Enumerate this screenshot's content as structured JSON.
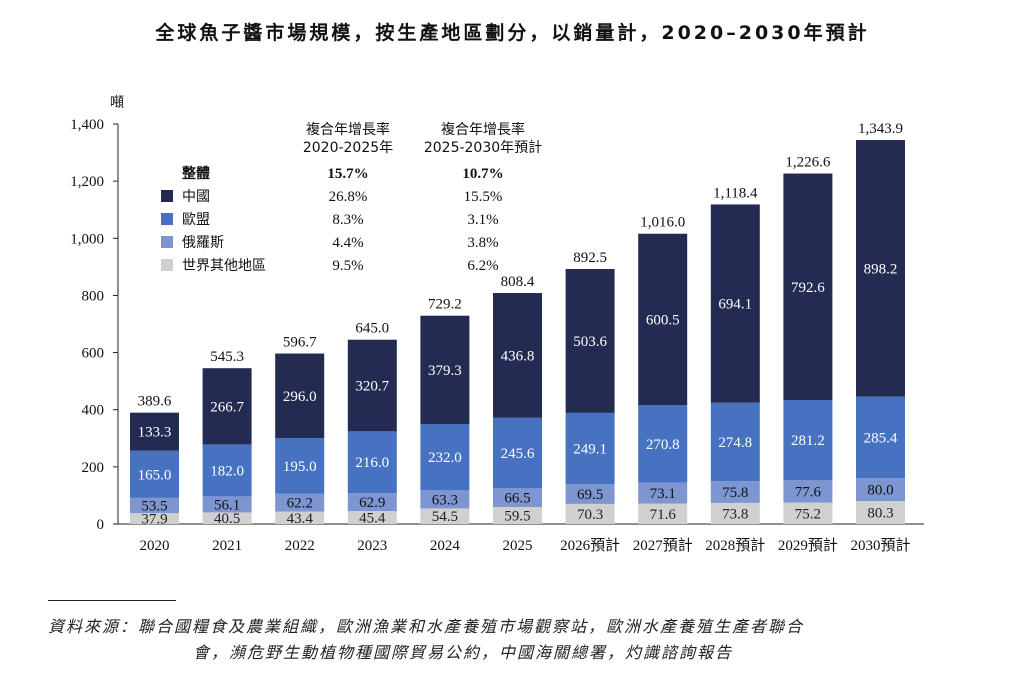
{
  "title": "全球魚子醬市場規模，按生產地區劃分，以銷量計，2020–2030年預計",
  "source_line1": "資料來源：聯合國糧食及農業組織，歐洲漁業和水產養殖市場觀察站，歐洲水產養殖生產者聯合",
  "source_line2": "會，瀕危野生動植物種國際貿易公約，中國海關總署，灼識諮詢報告",
  "chart_data": {
    "type": "bar",
    "stacked": true,
    "unit_label": "噸",
    "categories": [
      "2020",
      "2021",
      "2022",
      "2023",
      "2024",
      "2025",
      "2026預計",
      "2027預計",
      "2028預計",
      "2029預計",
      "2030預計"
    ],
    "ylim": [
      0,
      1400
    ],
    "yticks": [
      "0",
      "200",
      "400",
      "600",
      "800",
      "1,000",
      "1,200",
      "1,400"
    ],
    "series": [
      {
        "name": "世界其他地區",
        "color": "#d0d0d0",
        "text_color": "#222222",
        "values": [
          37.9,
          40.5,
          43.4,
          45.4,
          54.5,
          59.5,
          70.3,
          71.6,
          73.8,
          75.2,
          80.3
        ],
        "labels": [
          "37.9",
          "40.5",
          "43.4",
          "45.4",
          "54.5",
          "59.5",
          "70.3",
          "71.6",
          "73.8",
          "75.2",
          "80.3"
        ]
      },
      {
        "name": "俄羅斯",
        "color": "#7d96d2",
        "text_color": "#111111",
        "values": [
          53.5,
          56.1,
          62.2,
          62.9,
          63.3,
          66.5,
          69.5,
          73.1,
          75.8,
          77.6,
          80.0
        ],
        "labels": [
          "53.5",
          "56.1",
          "62.2",
          "62.9",
          "63.3",
          "66.5",
          "69.5",
          "73.1",
          "75.8",
          "77.6",
          "80.0"
        ]
      },
      {
        "name": "歐盟",
        "color": "#4672c1",
        "text_color": "#ffffff",
        "values": [
          165.0,
          182.0,
          195.0,
          216.0,
          232.0,
          245.6,
          249.1,
          270.8,
          274.8,
          281.2,
          285.4
        ],
        "labels": [
          "165.0",
          "182.0",
          "195.0",
          "216.0",
          "232.0",
          "245.6",
          "249.1",
          "270.8",
          "274.8",
          "281.2",
          "285.4"
        ]
      },
      {
        "name": "中國",
        "color": "#232b52",
        "text_color": "#ffffff",
        "values": [
          133.3,
          266.7,
          296.0,
          320.7,
          379.3,
          436.8,
          503.6,
          600.5,
          694.1,
          792.6,
          898.2
        ],
        "labels": [
          "133.3",
          "266.7",
          "296.0",
          "320.7",
          "379.3",
          "436.8",
          "503.6",
          "600.5",
          "694.1",
          "792.6",
          "898.2"
        ]
      }
    ],
    "totals": [
      389.6,
      545.3,
      596.7,
      645.0,
      729.2,
      808.4,
      892.5,
      1016.0,
      1118.4,
      1226.6,
      1343.9
    ],
    "total_labels": [
      "389.6",
      "545.3",
      "596.7",
      "645.0",
      "729.2",
      "808.4",
      "892.5",
      "1,016.0",
      "1,118.4",
      "1,226.6",
      "1,343.9"
    ],
    "cagr_table": {
      "header_1": [
        "複合年增長率",
        "2020-2025年"
      ],
      "header_2": [
        "複合年增長率",
        "2025-2030年預計"
      ],
      "rows": [
        {
          "name": "整體",
          "color": "",
          "v1": "15.7%",
          "v2": "10.7%",
          "bold": true
        },
        {
          "name": "中國",
          "color": "#232b52",
          "v1": "26.8%",
          "v2": "15.5%",
          "bold": false
        },
        {
          "name": "歐盟",
          "color": "#4672c1",
          "v1": "8.3%",
          "v2": "3.1%",
          "bold": false
        },
        {
          "name": "俄羅斯",
          "color": "#7d96d2",
          "v1": "4.4%",
          "v2": "3.8%",
          "bold": false
        },
        {
          "name": "世界其他地區",
          "color": "#d0d0d0",
          "v1": "9.5%",
          "v2": "6.2%",
          "bold": false
        }
      ]
    }
  }
}
